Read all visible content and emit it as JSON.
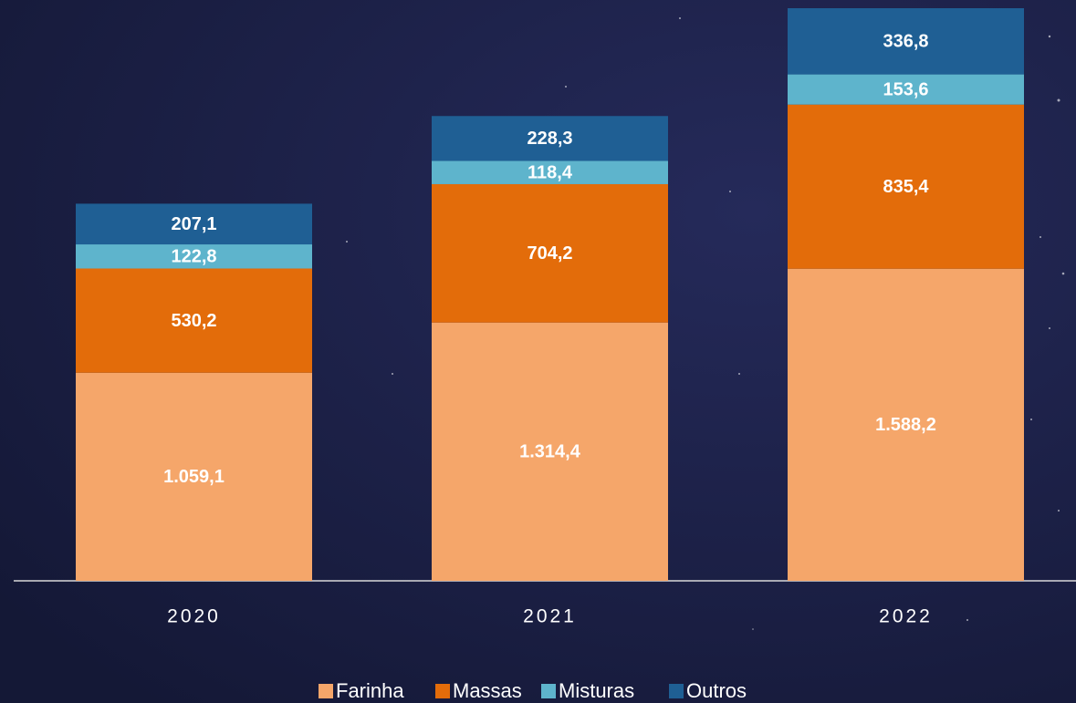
{
  "chart_data": {
    "type": "stacked_bar",
    "categories": [
      "2020",
      "2021",
      "2022"
    ],
    "series": [
      {
        "name": "Farinha",
        "color": "#f5a66a",
        "values": [
          1059.1,
          1314.4,
          1588.2
        ],
        "value_labels": [
          "1.059,1",
          "1.314,4",
          "1.588,2"
        ]
      },
      {
        "name": "Massas",
        "color": "#e36c0a",
        "values": [
          530.2,
          704.2,
          835.4
        ],
        "value_labels": [
          "530,2",
          "704,2",
          "835,4"
        ]
      },
      {
        "name": "Misturas",
        "color": "#5eb4cc",
        "values": [
          122.8,
          118.4,
          153.6
        ],
        "value_labels": [
          "122,8",
          "118,4",
          "153,6"
        ]
      },
      {
        "name": "Outros",
        "color": "#1f5f94",
        "values": [
          207.1,
          228.3,
          336.8
        ],
        "value_labels": [
          "207,1",
          "228,3",
          "336,8"
        ]
      }
    ],
    "legend": "bottom"
  }
}
